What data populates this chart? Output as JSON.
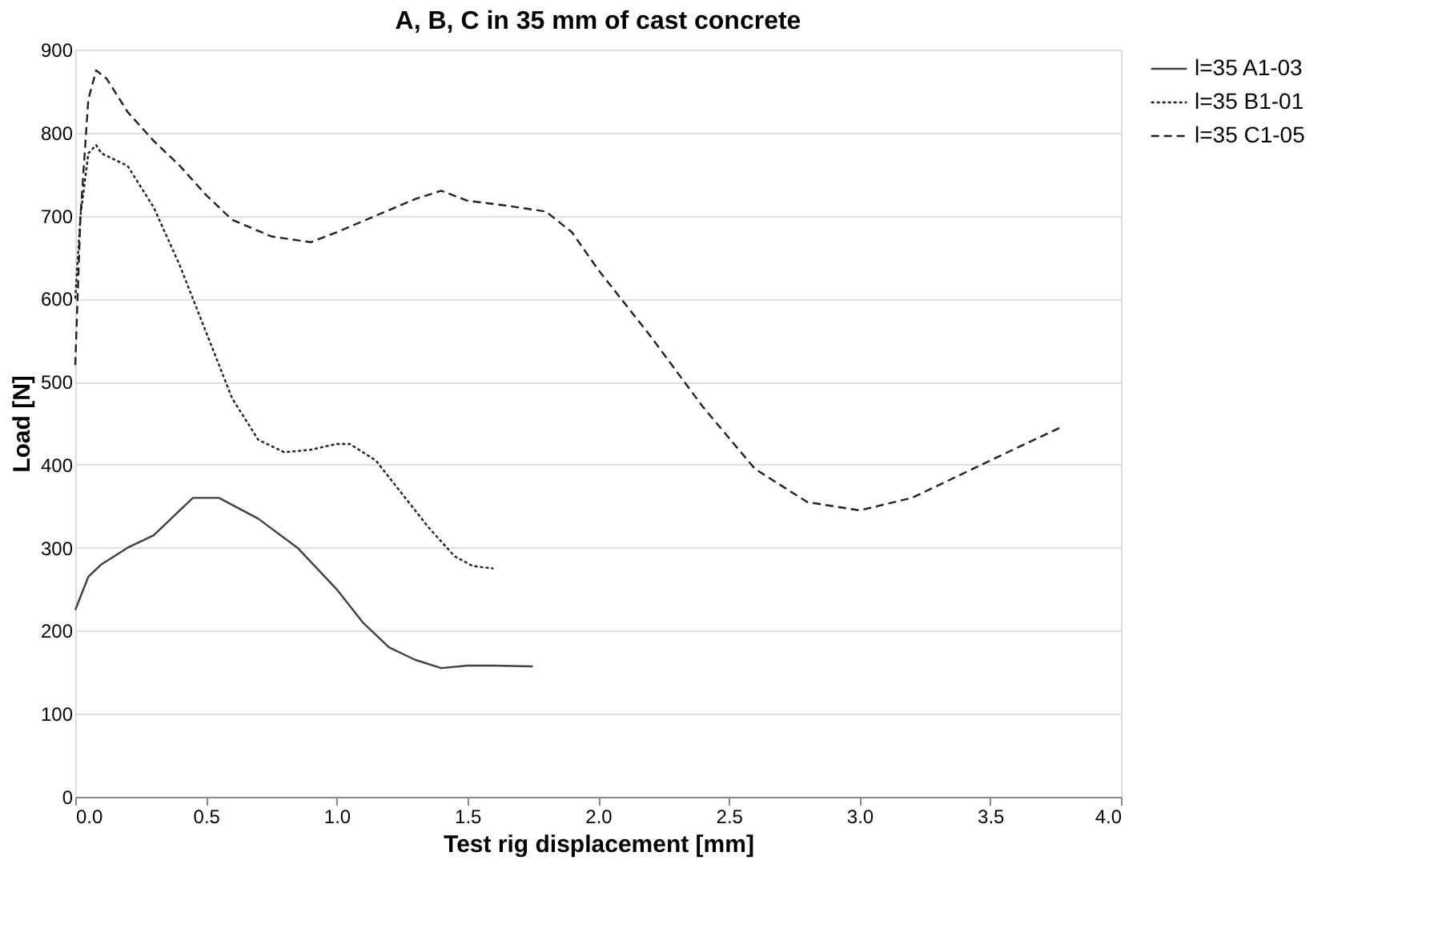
{
  "chart_data": {
    "type": "line",
    "title": "A, B, C in 35 mm of cast concrete",
    "xlabel": "Test rig displacement [mm]",
    "ylabel": "Load [N]",
    "xlim": [
      0,
      4
    ],
    "xticks": [
      {
        "value": 0,
        "label": "0.0"
      },
      {
        "value": 0.5,
        "label": "0.5"
      },
      {
        "value": 1,
        "label": "1.0"
      },
      {
        "value": 1.5,
        "label": "1.5"
      },
      {
        "value": 2,
        "label": "2.0"
      },
      {
        "value": 2.5,
        "label": "2.5"
      },
      {
        "value": 3,
        "label": "3.0"
      },
      {
        "value": 3.5,
        "label": "3.5"
      },
      {
        "value": 4,
        "label": "4.0"
      }
    ],
    "ylim": [
      0,
      900
    ],
    "yticks": [
      0,
      100,
      200,
      300,
      400,
      500,
      600,
      700,
      800,
      900
    ],
    "grid": "y",
    "legend": "right",
    "marker": "none",
    "series": [
      {
        "name": "l=35 A1-03",
        "color": "#404040",
        "line_style": "solid",
        "x": [
          0,
          0.05,
          0.1,
          0.2,
          0.3,
          0.4,
          0.45,
          0.55,
          0.7,
          0.85,
          1.0,
          1.1,
          1.2,
          1.3,
          1.4,
          1.5,
          1.6,
          1.75
        ],
        "values": [
          225,
          265,
          280,
          300,
          315,
          345,
          360,
          360,
          335,
          300,
          250,
          210,
          180,
          165,
          155,
          158,
          158,
          157
        ]
      },
      {
        "name": "l=35 B1-01",
        "color": "#202020",
        "line_style": "dotted",
        "x": [
          0,
          0.02,
          0.05,
          0.08,
          0.1,
          0.2,
          0.3,
          0.4,
          0.5,
          0.6,
          0.7,
          0.8,
          0.9,
          1.0,
          1.05,
          1.15,
          1.25,
          1.35,
          1.45,
          1.52,
          1.6
        ],
        "values": [
          600,
          700,
          775,
          785,
          775,
          760,
          710,
          640,
          560,
          480,
          430,
          415,
          418,
          425,
          425,
          405,
          365,
          325,
          290,
          278,
          275
        ]
      },
      {
        "name": "l=35 C1-05",
        "color": "#202020",
        "line_style": "dashed",
        "x": [
          0,
          0.02,
          0.05,
          0.08,
          0.12,
          0.2,
          0.3,
          0.4,
          0.5,
          0.6,
          0.75,
          0.9,
          1.0,
          1.15,
          1.3,
          1.4,
          1.5,
          1.65,
          1.8,
          1.9,
          2.0,
          2.2,
          2.4,
          2.6,
          2.8,
          3.0,
          3.2,
          3.4,
          3.6,
          3.77
        ],
        "values": [
          520,
          700,
          840,
          875,
          865,
          825,
          790,
          760,
          725,
          695,
          675,
          668,
          680,
          700,
          720,
          730,
          718,
          712,
          705,
          680,
          635,
          555,
          470,
          395,
          355,
          345,
          360,
          390,
          420,
          445
        ]
      }
    ]
  }
}
